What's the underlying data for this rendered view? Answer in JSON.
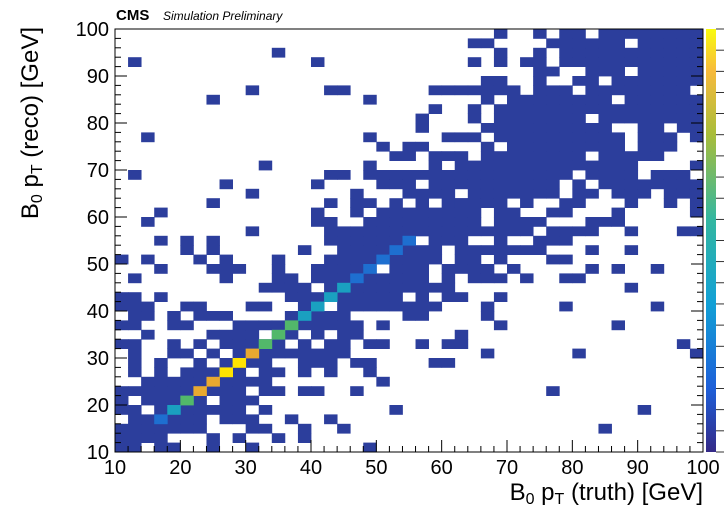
{
  "header": {
    "experiment": "CMS",
    "status": "Simulation Preliminary"
  },
  "chart_data": {
    "type": "heatmap",
    "title": "",
    "xlabel": {
      "main": "B",
      "sub": "0",
      "mid": " p",
      "sub2": "T",
      "tail": " (truth) [GeV]"
    },
    "ylabel": {
      "main": "B",
      "sub": "0",
      "mid": " p",
      "sub2": "T",
      "tail": " (reco) [GeV]"
    },
    "xlim": [
      10,
      100
    ],
    "ylim": [
      10,
      100
    ],
    "bin_width": 2,
    "grid": false,
    "x_ticks": [
      "10",
      "20",
      "30",
      "40",
      "50",
      "60",
      "70",
      "80",
      "90",
      "100"
    ],
    "y_ticks": [
      "10",
      "20",
      "30",
      "40",
      "50",
      "60",
      "70",
      "80",
      "90",
      "100"
    ],
    "colors": {
      "low": "#2c3e9c",
      "mid_low": "#1e6fd0",
      "mid": "#1aa0c0",
      "mid_high": "#52b86a",
      "high": "#e8a930",
      "max": "#ffe300"
    },
    "diagonal_bins": [
      {
        "x": 17,
        "y": 17,
        "level": 2
      },
      {
        "x": 19,
        "y": 19,
        "level": 3
      },
      {
        "x": 21,
        "y": 21,
        "level": 4
      },
      {
        "x": 23,
        "y": 23,
        "level": 6
      },
      {
        "x": 25,
        "y": 25,
        "level": 7
      },
      {
        "x": 27,
        "y": 27,
        "level": 8
      },
      {
        "x": 29,
        "y": 29,
        "level": 8
      },
      {
        "x": 31,
        "y": 31,
        "level": 6
      },
      {
        "x": 33,
        "y": 33,
        "level": 5
      },
      {
        "x": 35,
        "y": 35,
        "level": 4
      },
      {
        "x": 37,
        "y": 37,
        "level": 4
      },
      {
        "x": 39,
        "y": 39,
        "level": 3
      },
      {
        "x": 41,
        "y": 41,
        "level": 3
      },
      {
        "x": 43,
        "y": 43,
        "level": 3
      },
      {
        "x": 45,
        "y": 45,
        "level": 3
      },
      {
        "x": 47,
        "y": 47,
        "level": 2
      },
      {
        "x": 49,
        "y": 49,
        "level": 2
      },
      {
        "x": 51,
        "y": 51,
        "level": 2
      },
      {
        "x": 53,
        "y": 53,
        "level": 2
      },
      {
        "x": 55,
        "y": 55,
        "level": 2
      },
      {
        "x": 57,
        "y": 57,
        "level": 1
      },
      {
        "x": 59,
        "y": 59,
        "level": 1
      },
      {
        "x": 61,
        "y": 61,
        "level": 1
      },
      {
        "x": 63,
        "y": 63,
        "level": 1
      }
    ]
  }
}
